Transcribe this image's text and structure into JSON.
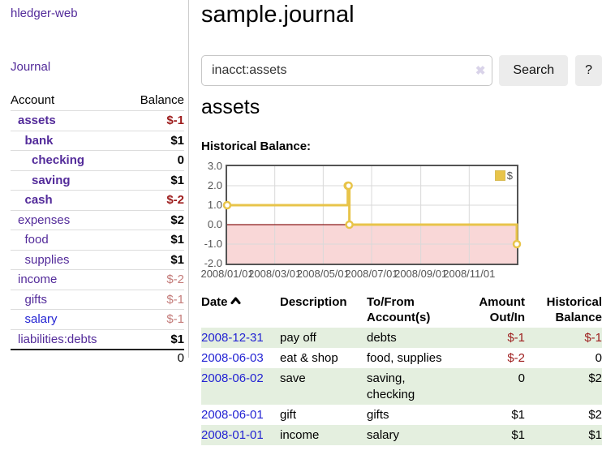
{
  "app": {
    "title": "hledger-web"
  },
  "sidebar": {
    "journal_link": "Journal",
    "accounts_header": {
      "account": "Account",
      "balance": "Balance"
    },
    "accounts": [
      {
        "name": "assets",
        "level": 0,
        "balance": "$-1",
        "bold": true,
        "neg": "strong",
        "link": "purple"
      },
      {
        "name": "bank",
        "level": 1,
        "balance": "$1",
        "bold": true,
        "neg": null,
        "link": "purple"
      },
      {
        "name": "checking",
        "level": 2,
        "balance": "0",
        "bold": true,
        "neg": null,
        "link": "purple"
      },
      {
        "name": "saving",
        "level": 2,
        "balance": "$1",
        "bold": true,
        "neg": null,
        "link": "purple"
      },
      {
        "name": "cash",
        "level": 1,
        "balance": "$-2",
        "bold": true,
        "neg": "strong",
        "link": "purple"
      },
      {
        "name": "expenses",
        "level": 0,
        "balance": "$2",
        "bold": false,
        "neg": null,
        "link": "purple"
      },
      {
        "name": "food",
        "level": 1,
        "balance": "$1",
        "bold": false,
        "neg": null,
        "link": "purple"
      },
      {
        "name": "supplies",
        "level": 1,
        "balance": "$1",
        "bold": false,
        "neg": null,
        "link": "purple"
      },
      {
        "name": "income",
        "level": 0,
        "balance": "$-2",
        "bold": false,
        "neg": "soft",
        "link": "purple"
      },
      {
        "name": "gifts",
        "level": 1,
        "balance": "$-1",
        "bold": false,
        "neg": "soft",
        "link": "purple"
      },
      {
        "name": "salary",
        "level": 1,
        "balance": "$-1",
        "bold": false,
        "neg": "soft",
        "link": "blue"
      },
      {
        "name": "liabilities:debts",
        "level": 0,
        "balance": "$1",
        "bold": false,
        "neg": null,
        "link": "purple"
      }
    ],
    "total": "0"
  },
  "main": {
    "title": "sample.journal",
    "search": {
      "value": "inacct:assets",
      "clear_icon": "✖",
      "button_label": "Search",
      "help_label": "?"
    },
    "account_heading": "assets",
    "chart_label": "Historical Balance:"
  },
  "chart_data": {
    "type": "line",
    "title": "Historical Balance",
    "steps": true,
    "xlabel": "",
    "ylabel": "",
    "x_range_days": [
      0,
      365
    ],
    "y_range": [
      -2,
      3
    ],
    "series": [
      {
        "name": "$",
        "color": "#e8c44a",
        "points": [
          {
            "date": "2008-01-01",
            "day": 0,
            "value": 1
          },
          {
            "date": "2008-06-01",
            "day": 152,
            "value": 2
          },
          {
            "date": "2008-06-02",
            "day": 153,
            "value": 2
          },
          {
            "date": "2008-06-03",
            "day": 154,
            "value": 0
          },
          {
            "date": "2008-12-31",
            "day": 365,
            "value": -1
          }
        ]
      }
    ],
    "x_ticks": [
      {
        "label": "2008/01/01",
        "day": 0
      },
      {
        "label": "2008/03/01",
        "day": 60
      },
      {
        "label": "2008/05/01",
        "day": 121
      },
      {
        "label": "2008/07/01",
        "day": 182
      },
      {
        "label": "2008/09/01",
        "day": 244
      },
      {
        "label": "2008/11/01",
        "day": 305
      }
    ],
    "y_ticks": [
      3,
      2,
      1,
      0,
      -1,
      -2
    ],
    "legend": {
      "label": "$",
      "position": "top-right",
      "swatch_color": "#e8c44a"
    },
    "grid": true,
    "zero_line_color": "#8b1a1a",
    "negative_region_fill": "#f9d7d7"
  },
  "transactions": {
    "columns": [
      "Date",
      "Description",
      "To/From Account(s)",
      "Amount Out/In",
      "Historical Balance"
    ],
    "sort": {
      "column": "Date",
      "direction": "ascending"
    },
    "rows": [
      {
        "date": "2008-12-31",
        "description": "pay off",
        "accounts": "debts",
        "amount": "$-1",
        "amount_neg": true,
        "balance": "$-1",
        "balance_neg": true,
        "shaded": true
      },
      {
        "date": "2008-06-03",
        "description": "eat & shop",
        "accounts": "food, supplies",
        "amount": "$-2",
        "amount_neg": true,
        "balance": "0",
        "balance_neg": false,
        "shaded": false
      },
      {
        "date": "2008-06-02",
        "description": "save",
        "accounts": "saving, checking",
        "amount": "0",
        "amount_neg": false,
        "balance": "$2",
        "balance_neg": false,
        "shaded": true
      },
      {
        "date": "2008-06-01",
        "description": "gift",
        "accounts": "gifts",
        "amount": "$1",
        "amount_neg": false,
        "balance": "$2",
        "balance_neg": false,
        "shaded": false
      },
      {
        "date": "2008-01-01",
        "description": "income",
        "accounts": "salary",
        "amount": "$1",
        "amount_neg": false,
        "balance": "$1",
        "balance_neg": false,
        "shaded": true
      }
    ]
  }
}
